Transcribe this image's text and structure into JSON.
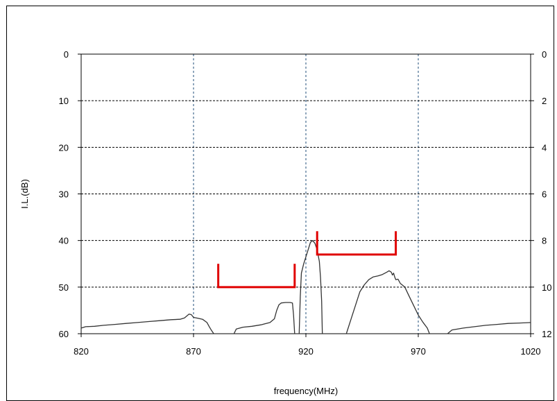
{
  "chart_data": {
    "type": "line",
    "xlabel": "frequency(MHz)",
    "ylabel": "I.L.(dB)",
    "xlim": [
      820,
      1020
    ],
    "ylim": [
      0,
      60
    ],
    "y_inverted": true,
    "y2lim": [
      0,
      12
    ],
    "x_ticks": [
      820,
      870,
      920,
      970,
      1020
    ],
    "y_ticks": [
      0,
      10,
      20,
      30,
      40,
      50,
      60
    ],
    "y2_ticks": [
      0,
      2,
      4,
      6,
      8,
      10,
      12
    ],
    "x_grid": [
      870,
      920,
      970
    ],
    "y_grid": [
      10,
      20,
      30,
      40,
      50
    ],
    "series": [
      {
        "color": "#333333",
        "segments": [
          [
            [
              820,
              58.8
            ],
            [
              822,
              58.5
            ],
            [
              826,
              58.4
            ],
            [
              830,
              58.2
            ],
            [
              835,
              58.0
            ],
            [
              840,
              57.8
            ],
            [
              845,
              57.6
            ],
            [
              850,
              57.4
            ],
            [
              855,
              57.2
            ],
            [
              860,
              57.0
            ],
            [
              864,
              56.9
            ],
            [
              866,
              56.6
            ],
            [
              868,
              55.8
            ],
            [
              869,
              55.9
            ],
            [
              870,
              56.5
            ],
            [
              872,
              56.7
            ],
            [
              874,
              56.9
            ],
            [
              876,
              57.6
            ],
            [
              877,
              58.5
            ],
            [
              878,
              59.3
            ],
            [
              879,
              60.0
            ]
          ],
          [
            [
              888,
              60.0
            ],
            [
              889,
              59.0
            ],
            [
              892,
              58.6
            ],
            [
              896,
              58.4
            ],
            [
              900,
              58.1
            ],
            [
              904,
              57.6
            ],
            [
              906,
              56.8
            ],
            [
              907,
              55.0
            ],
            [
              908,
              53.8
            ],
            [
              909,
              53.4
            ],
            [
              911,
              53.3
            ],
            [
              913,
              53.3
            ],
            [
              914,
              53.4
            ],
            [
              914.5,
              56.0
            ],
            [
              915,
              60.0
            ]
          ],
          [
            [
              917,
              60.0
            ],
            [
              917.5,
              52.0
            ],
            [
              918,
              47.0
            ],
            [
              919,
              45.0
            ],
            [
              920,
              43.5
            ],
            [
              921,
              42.0
            ],
            [
              922,
              40.4
            ],
            [
              923,
              40.0
            ],
            [
              924,
              40.6
            ],
            [
              925,
              42.0
            ],
            [
              926,
              44.5
            ],
            [
              926.5,
              48.0
            ],
            [
              927,
              53.0
            ],
            [
              927.3,
              60.0
            ]
          ],
          [
            [
              938,
              60.0
            ],
            [
              940,
              57.0
            ],
            [
              942,
              54.0
            ],
            [
              944,
              51.0
            ],
            [
              946,
              49.5
            ],
            [
              948,
              48.4
            ],
            [
              950,
              47.8
            ],
            [
              952,
              47.6
            ],
            [
              954,
              47.3
            ],
            [
              956,
              46.8
            ],
            [
              957,
              46.5
            ],
            [
              958,
              46.8
            ],
            [
              958.5,
              47.4
            ],
            [
              959,
              47.0
            ],
            [
              959.5,
              47.8
            ],
            [
              960,
              48.4
            ],
            [
              961,
              48.3
            ],
            [
              962,
              49.2
            ],
            [
              964,
              50.0
            ],
            [
              966,
              52.0
            ],
            [
              968,
              54.0
            ],
            [
              970,
              56.0
            ],
            [
              972,
              57.5
            ],
            [
              974,
              58.8
            ],
            [
              975,
              60.0
            ]
          ],
          [
            [
              983,
              60.0
            ],
            [
              985,
              59.2
            ],
            [
              990,
              58.8
            ],
            [
              995,
              58.5
            ],
            [
              1000,
              58.2
            ],
            [
              1005,
              58.0
            ],
            [
              1010,
              57.8
            ],
            [
              1015,
              57.7
            ],
            [
              1020,
              57.6
            ]
          ]
        ]
      }
    ],
    "spec_masks": [
      {
        "color": "#e00000",
        "x_start": 881,
        "x_end": 915,
        "y_level": 50,
        "y_top": 45
      },
      {
        "color": "#e00000",
        "x_start": 925,
        "x_end": 960,
        "y_level": 43,
        "y_top": 38
      }
    ]
  }
}
